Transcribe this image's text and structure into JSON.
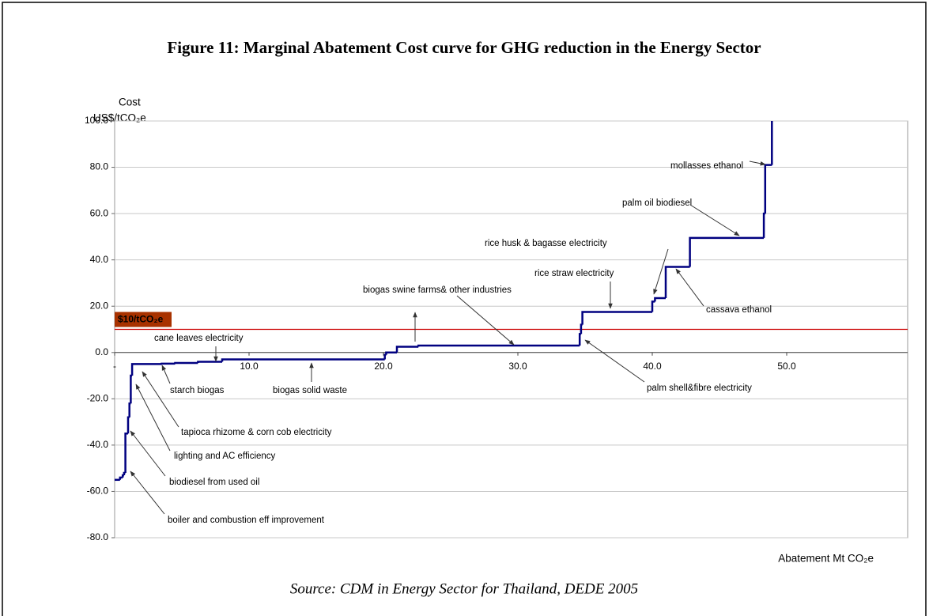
{
  "chart_data": {
    "type": "step",
    "title": "Figure 11: Marginal Abatement Cost curve for GHG reduction in the Energy Sector",
    "ylabel": [
      "Cost",
      "US$/tCO₂e"
    ],
    "xlabel": "Abatement Mt CO₂e",
    "source": "Source: CDM in Energy Sector for Thailand, DEDE 2005",
    "color": "#000080",
    "grid": true,
    "negative_tick_color": "#cc0000",
    "xlim": [
      0,
      59
    ],
    "ylim": [
      -80,
      100
    ],
    "xticks": [
      {
        "value": 0,
        "label": "-"
      },
      {
        "value": 10,
        "label": "10.0"
      },
      {
        "value": 20,
        "label": "20.0"
      },
      {
        "value": 30,
        "label": "30.0"
      },
      {
        "value": 40,
        "label": "40.0"
      },
      {
        "value": 50,
        "label": "50.0"
      }
    ],
    "yticks": [
      {
        "value": -80,
        "label": "-80.0"
      },
      {
        "value": -60,
        "label": "-60.0"
      },
      {
        "value": -40,
        "label": "-40.0"
      },
      {
        "value": -20,
        "label": "-20.0"
      },
      {
        "value": 0,
        "label": "0.0"
      },
      {
        "value": 20,
        "label": "20.0"
      },
      {
        "value": 40,
        "label": "40.0"
      },
      {
        "value": 60,
        "label": "60.0"
      },
      {
        "value": 80,
        "label": "80.0"
      },
      {
        "value": 100,
        "label": "100.0"
      }
    ],
    "x": [
      0,
      0.4,
      0.6,
      0.7,
      0.8,
      1.0,
      1.1,
      1.2,
      1.3,
      3.5,
      4.5,
      6.2,
      8.0,
      20.1,
      20.2,
      21.0,
      22.6,
      34.6,
      34.7,
      34.8,
      40.0,
      40.2,
      41.0,
      42.8,
      48.3,
      48.4,
      48.9
    ],
    "values": [
      -55,
      -54,
      -53,
      -52,
      -35,
      -28,
      -22,
      -10,
      -5,
      -4.8,
      -4.5,
      -4,
      -3,
      -1,
      0,
      2.5,
      3,
      8,
      12,
      17.5,
      22,
      23.5,
      37,
      49.5,
      60,
      81,
      100
    ],
    "threshold": {
      "value": 10,
      "label": "$10/tCO₂e",
      "color": "#cc0000"
    },
    "annotations": [
      "mollasses ethanol",
      "palm oil biodiesel",
      "rice husk & bagasse electricity",
      "rice straw electricity",
      "cassava ethanol",
      "biogas swine farms& other industries",
      "palm shell&fibre electricity",
      "cane leaves electricity",
      "starch biogas",
      "biogas solid waste",
      "tapioca rhizome & corn cob electricity",
      "lighting and AC efficiency",
      "biodiesel from used oil",
      "boiler and combustion eff improvement"
    ]
  }
}
